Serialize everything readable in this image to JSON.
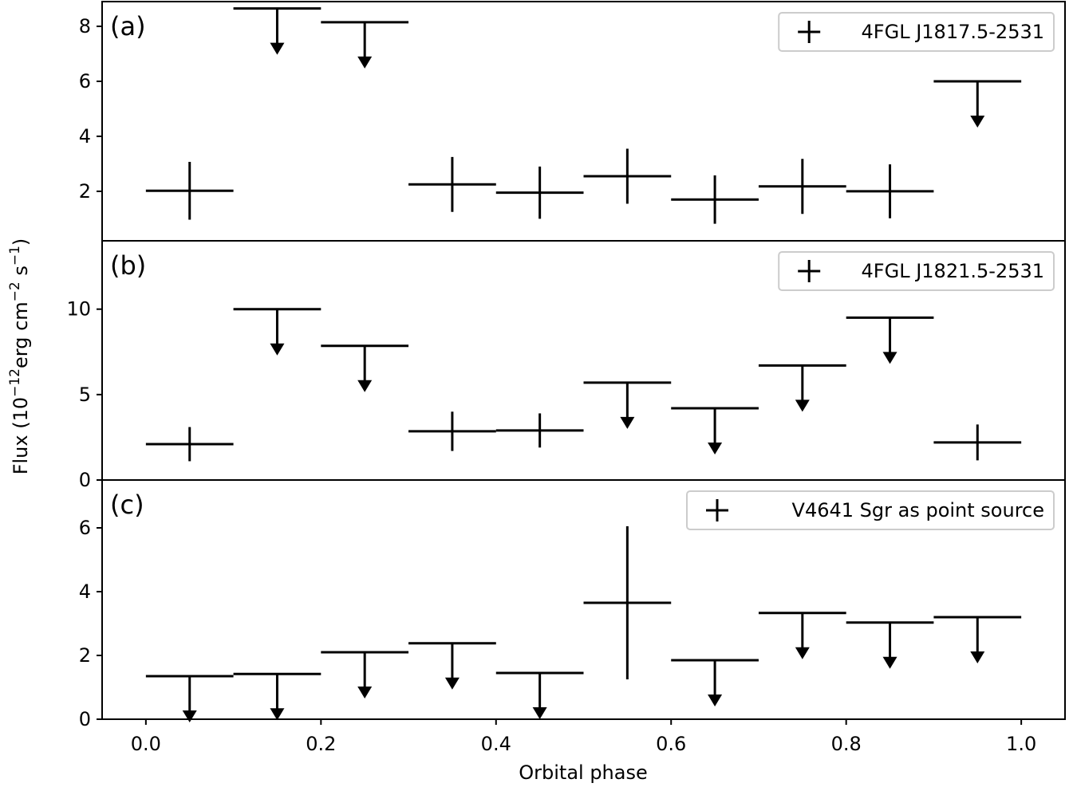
{
  "chart_data": {
    "type": "scatter",
    "xlabel": "Orbital phase",
    "ylabel_parts": [
      "Flux (10",
      "−12",
      "erg cm",
      "−2",
      " s",
      "−1",
      ")"
    ],
    "xlim": [
      -0.05,
      1.05
    ],
    "xticks": [
      0.0,
      0.2,
      0.4,
      0.6,
      0.8,
      1.0
    ],
    "xtick_labels": [
      "0.0",
      "0.2",
      "0.4",
      "0.6",
      "0.8",
      "1.0"
    ],
    "bin_half_width": 0.05,
    "color": "#000000",
    "panels": [
      {
        "tag": "(a)",
        "legend": "4FGL J1817.5-2531",
        "ylim": [
          0.2,
          8.9
        ],
        "yticks": [
          2,
          4,
          6,
          8
        ],
        "ytick_labels": [
          "2",
          "4",
          "6",
          "8"
        ],
        "points": [
          {
            "x": 0.05,
            "y": 2.02,
            "err": 1.05
          },
          {
            "x": 0.15,
            "y": 8.65,
            "upper_limit": true
          },
          {
            "x": 0.25,
            "y": 8.15,
            "upper_limit": true
          },
          {
            "x": 0.35,
            "y": 2.25,
            "err": 1.0
          },
          {
            "x": 0.45,
            "y": 1.95,
            "err": 0.95
          },
          {
            "x": 0.55,
            "y": 2.55,
            "err": 1.0
          },
          {
            "x": 0.65,
            "y": 1.7,
            "err": 0.88
          },
          {
            "x": 0.75,
            "y": 2.18,
            "err": 1.0
          },
          {
            "x": 0.85,
            "y": 2.0,
            "err": 0.98
          },
          {
            "x": 0.95,
            "y": 6.0,
            "upper_limit": true
          }
        ]
      },
      {
        "tag": "(b)",
        "legend": "4FGL J1821.5-2531",
        "ylim": [
          0,
          14
        ],
        "yticks": [
          0,
          5,
          10
        ],
        "ytick_labels": [
          "0",
          "5",
          "10"
        ],
        "points": [
          {
            "x": 0.05,
            "y": 2.1,
            "err": 1.0
          },
          {
            "x": 0.15,
            "y": 10.0,
            "upper_limit": true
          },
          {
            "x": 0.25,
            "y": 7.85,
            "upper_limit": true
          },
          {
            "x": 0.35,
            "y": 2.85,
            "err": 1.15
          },
          {
            "x": 0.45,
            "y": 2.9,
            "err": 1.0
          },
          {
            "x": 0.55,
            "y": 5.7,
            "upper_limit": true
          },
          {
            "x": 0.65,
            "y": 4.2,
            "upper_limit": true
          },
          {
            "x": 0.75,
            "y": 6.7,
            "upper_limit": true
          },
          {
            "x": 0.85,
            "y": 9.5,
            "upper_limit": true
          },
          {
            "x": 0.95,
            "y": 2.2,
            "err": 1.05
          }
        ]
      },
      {
        "tag": "(c)",
        "legend": "V4641 Sgr as point source",
        "ylim": [
          0,
          7.5
        ],
        "yticks": [
          0,
          2,
          4,
          6
        ],
        "ytick_labels": [
          "0",
          "2",
          "4",
          "6"
        ],
        "points": [
          {
            "x": 0.05,
            "y": 1.35,
            "upper_limit": true
          },
          {
            "x": 0.15,
            "y": 1.42,
            "upper_limit": true
          },
          {
            "x": 0.25,
            "y": 2.1,
            "upper_limit": true
          },
          {
            "x": 0.35,
            "y": 2.38,
            "upper_limit": true
          },
          {
            "x": 0.45,
            "y": 1.45,
            "upper_limit": true
          },
          {
            "x": 0.55,
            "y": 3.65,
            "err": 2.4
          },
          {
            "x": 0.65,
            "y": 1.85,
            "upper_limit": true
          },
          {
            "x": 0.75,
            "y": 3.33,
            "upper_limit": true
          },
          {
            "x": 0.85,
            "y": 3.03,
            "upper_limit": true
          },
          {
            "x": 0.95,
            "y": 3.2,
            "upper_limit": true
          }
        ]
      }
    ]
  }
}
